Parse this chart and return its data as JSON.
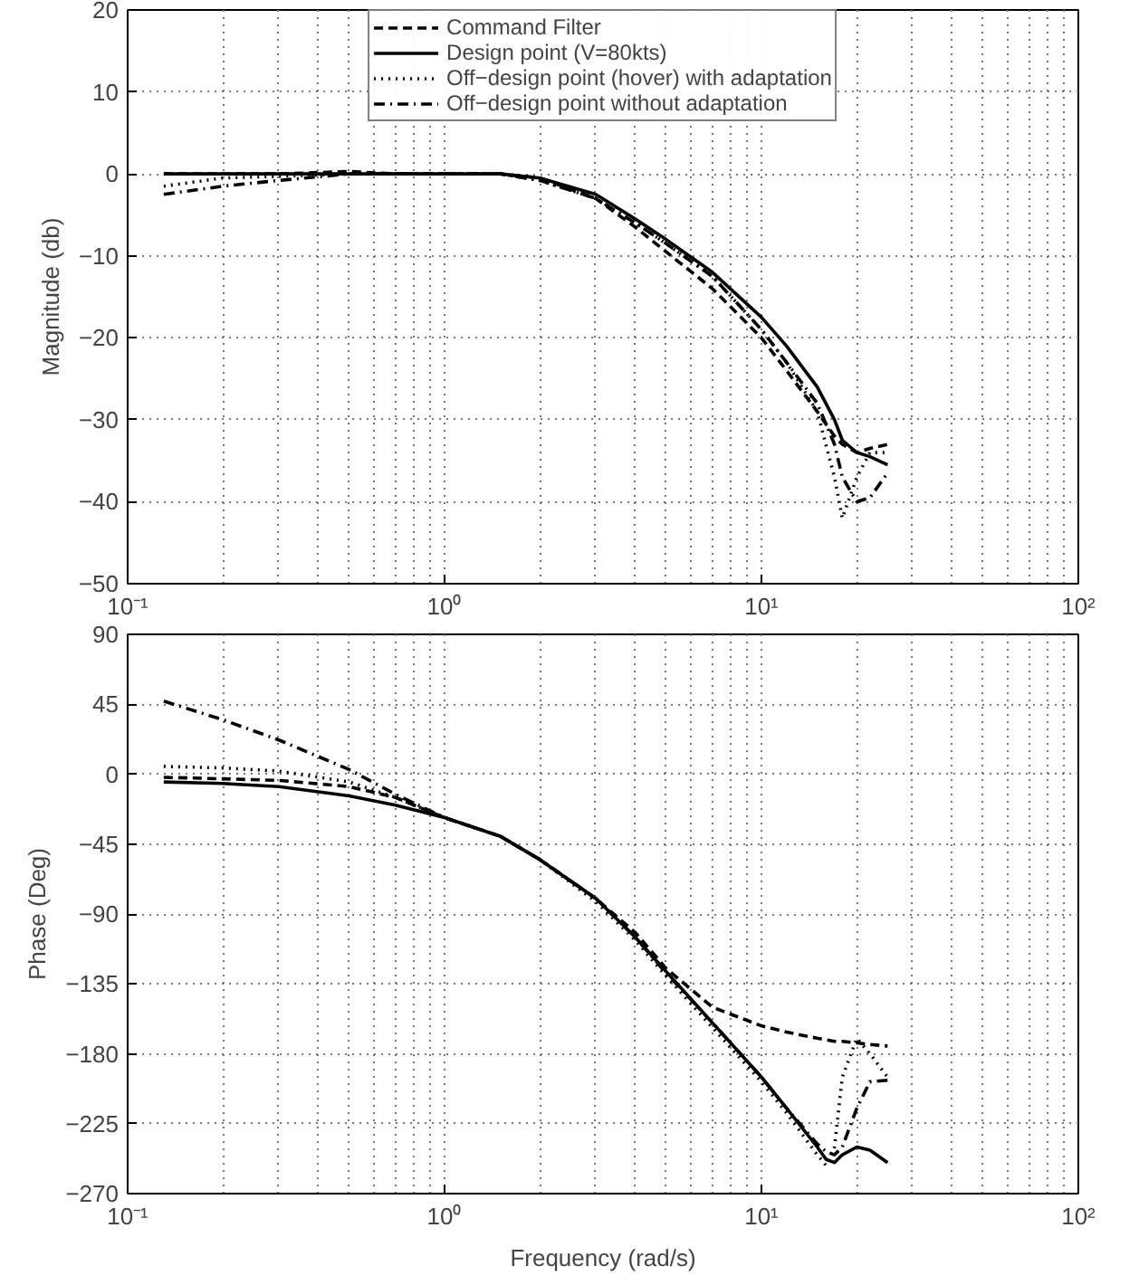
{
  "chart_data": [
    {
      "type": "line",
      "ylabel": "Magnitude (db)",
      "log": "x",
      "grid": true,
      "legend": "top",
      "xlim": [
        0.1,
        100
      ],
      "ylim": [
        -50,
        20
      ],
      "xticks": [
        {
          "value": 0.1,
          "label": "10⁻¹"
        },
        {
          "value": 1,
          "label": "10⁰"
        },
        {
          "value": 10,
          "label": "10¹"
        },
        {
          "value": 100,
          "label": "10²"
        }
      ],
      "yticks": [
        -50,
        -40,
        -30,
        -20,
        -10,
        0,
        10,
        20
      ],
      "x": [
        0.13,
        0.2,
        0.3,
        0.5,
        0.7,
        1,
        1.5,
        2,
        3,
        4,
        5,
        7,
        10,
        12,
        15,
        17,
        18,
        20,
        22,
        25
      ],
      "series": [
        {
          "name": "Command Filter",
          "color": "#000000",
          "line_style": "dashed",
          "values": [
            0,
            0,
            0,
            0.3,
            0,
            0,
            0,
            -0.5,
            -3,
            -6.5,
            -9.5,
            -14,
            -20,
            -24,
            -29,
            -32,
            -33,
            -34,
            -33.5,
            -33
          ]
        },
        {
          "name": "Design point (V=80kts)",
          "color": "#000000",
          "line_style": "solid",
          "values": [
            0,
            0,
            0,
            0,
            0,
            0,
            0,
            -0.5,
            -2.5,
            -5.5,
            -8,
            -12,
            -17.5,
            -21,
            -26,
            -30,
            -32.5,
            -34,
            -34.5,
            -35.5
          ]
        },
        {
          "name": "Off−design point (hover) with adaptation",
          "color": "#000000",
          "line_style": "dotted",
          "values": [
            -1.5,
            -0.5,
            -0.3,
            0,
            0,
            0,
            0,
            -0.8,
            -3,
            -6,
            -8.5,
            -12.5,
            -19,
            -23,
            -29,
            -37,
            -42,
            -37,
            -34,
            -34
          ]
        },
        {
          "name": "Off−design point without adaptation",
          "color": "#000000",
          "line_style": "dashdot",
          "values": [
            -2.5,
            -1.5,
            -0.8,
            0,
            0,
            0,
            0,
            -0.8,
            -3,
            -6,
            -8.5,
            -12.5,
            -19,
            -23,
            -28,
            -33,
            -37,
            -40,
            -39.5,
            -36.5
          ]
        }
      ]
    },
    {
      "type": "line",
      "ylabel": "Phase (Deg)",
      "xlabel": "Frequency (rad/s)",
      "log": "x",
      "grid": true,
      "xlim": [
        0.1,
        100
      ],
      "ylim": [
        -270,
        90
      ],
      "xticks": [
        {
          "value": 0.1,
          "label": "10⁻¹"
        },
        {
          "value": 1,
          "label": "10⁰"
        },
        {
          "value": 10,
          "label": "10¹"
        },
        {
          "value": 100,
          "label": "10²"
        }
      ],
      "yticks": [
        -270,
        -225,
        -180,
        -135,
        -90,
        -45,
        0,
        45,
        90
      ],
      "x": [
        0.13,
        0.2,
        0.3,
        0.5,
        0.7,
        1,
        1.5,
        2,
        3,
        4,
        5,
        7,
        10,
        12,
        15,
        16,
        17,
        18,
        20,
        22,
        25
      ],
      "series": [
        {
          "color": "#000000",
          "line_style": "dashed",
          "values": [
            -2,
            -3,
            -4,
            -8,
            -15,
            -28,
            -40,
            -55,
            -80,
            -102,
            -125,
            -150,
            -162,
            -166,
            -170,
            -171,
            -172,
            -172,
            -173,
            -174,
            -175
          ]
        },
        {
          "color": "#000000",
          "line_style": "solid",
          "values": [
            -5,
            -6,
            -8,
            -14,
            -20,
            -28,
            -40,
            -55,
            -80,
            -105,
            -127,
            -160,
            -195,
            -215,
            -240,
            -248,
            -250,
            -245,
            -240,
            -242,
            -250
          ]
        },
        {
          "color": "#000000",
          "line_style": "dotted",
          "values": [
            5,
            4,
            2,
            -5,
            -15,
            -28,
            -40,
            -55,
            -82,
            -107,
            -130,
            -163,
            -198,
            -218,
            -245,
            -252,
            -240,
            -195,
            -170,
            -180,
            -195
          ]
        },
        {
          "color": "#000000",
          "line_style": "dashdot",
          "values": [
            47,
            35,
            22,
            3,
            -13,
            -28,
            -40,
            -55,
            -80,
            -105,
            -128,
            -160,
            -195,
            -215,
            -238,
            -243,
            -245,
            -240,
            -215,
            -198,
            -197
          ]
        }
      ]
    }
  ]
}
